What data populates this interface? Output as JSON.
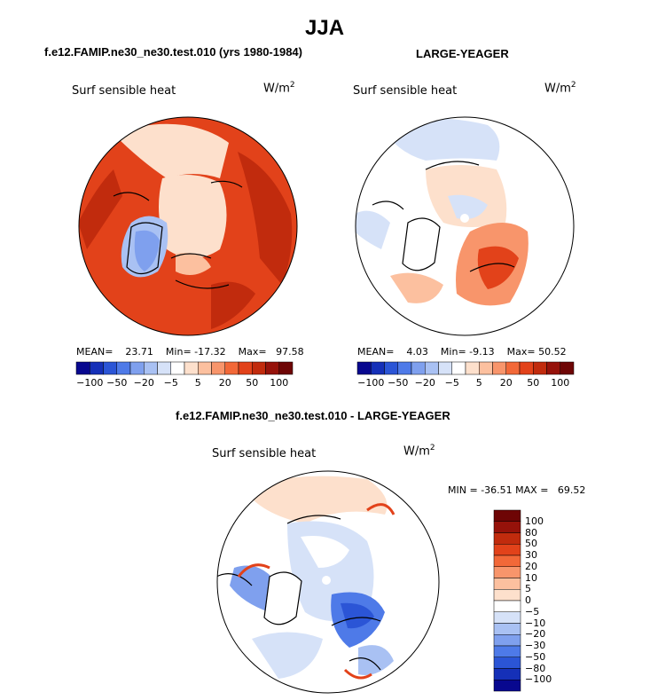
{
  "page_title": "JJA",
  "chart_data": [
    {
      "type": "heatmap",
      "title": "f.e12.FAMIP.ne30_ne30.test.010 (yrs 1980-1984)",
      "variable": "Surf sensible heat",
      "units": "W/m",
      "units_exp": "2",
      "projection": "north-polar-stereographic",
      "stats": {
        "mean_label": "MEAN=",
        "mean": "23.71",
        "min_label": "Min=",
        "min": "-17.32",
        "max_label": "Max=",
        "max": "97.58"
      },
      "colorbar": {
        "levels": [
          -100,
          -80,
          -50,
          -30,
          -20,
          -10,
          -5,
          0,
          5,
          10,
          20,
          30,
          50,
          80,
          100
        ],
        "tick_labels": [
          "-100",
          "-50",
          "-20",
          "-5",
          "5",
          "20",
          "50",
          "100"
        ]
      }
    },
    {
      "type": "heatmap",
      "title": "LARGE-YEAGER",
      "variable": "Surf sensible heat",
      "units": "W/m",
      "units_exp": "2",
      "projection": "north-polar-stereographic",
      "stats": {
        "mean_label": "MEAN=",
        "mean": "4.03",
        "min_label": "Min=",
        "min": "-9.13",
        "max_label": "Max=",
        "max": "50.52"
      },
      "colorbar": {
        "levels": [
          -100,
          -80,
          -50,
          -30,
          -20,
          -10,
          -5,
          0,
          5,
          10,
          20,
          30,
          50,
          80,
          100
        ],
        "tick_labels": [
          "-100",
          "-50",
          "-20",
          "-5",
          "5",
          "20",
          "50",
          "100"
        ]
      }
    },
    {
      "type": "heatmap",
      "title": "f.e12.FAMIP.ne30_ne30.test.010 - LARGE-YEAGER",
      "variable": "Surf sensible heat",
      "units": "W/m",
      "units_exp": "2",
      "projection": "north-polar-stereographic",
      "stats": {
        "min_label": "MIN =",
        "min": "-36.51",
        "max_label": "MAX =",
        "max": "69.52"
      },
      "colorbar": {
        "levels": [
          -100,
          -80,
          -50,
          -30,
          -20,
          -10,
          -5,
          0,
          5,
          10,
          20,
          30,
          50,
          80,
          100
        ],
        "tick_labels": [
          "100",
          "80",
          "50",
          "30",
          "20",
          "10",
          "5",
          "0",
          "-5",
          "-10",
          "-20",
          "-30",
          "-50",
          "-80",
          "-100"
        ]
      }
    }
  ],
  "colors": {
    "colorbar": [
      "#08088f",
      "#1530b8",
      "#2b55d6",
      "#4e7ae8",
      "#7fa0ee",
      "#a9c1f3",
      "#d6e2f8",
      "#ffffff",
      "#fde0cc",
      "#fcc09f",
      "#f8956b",
      "#f26838",
      "#e2421a",
      "#c12b0d",
      "#96120a",
      "#6e0505"
    ],
    "land_outline": "#000000"
  }
}
